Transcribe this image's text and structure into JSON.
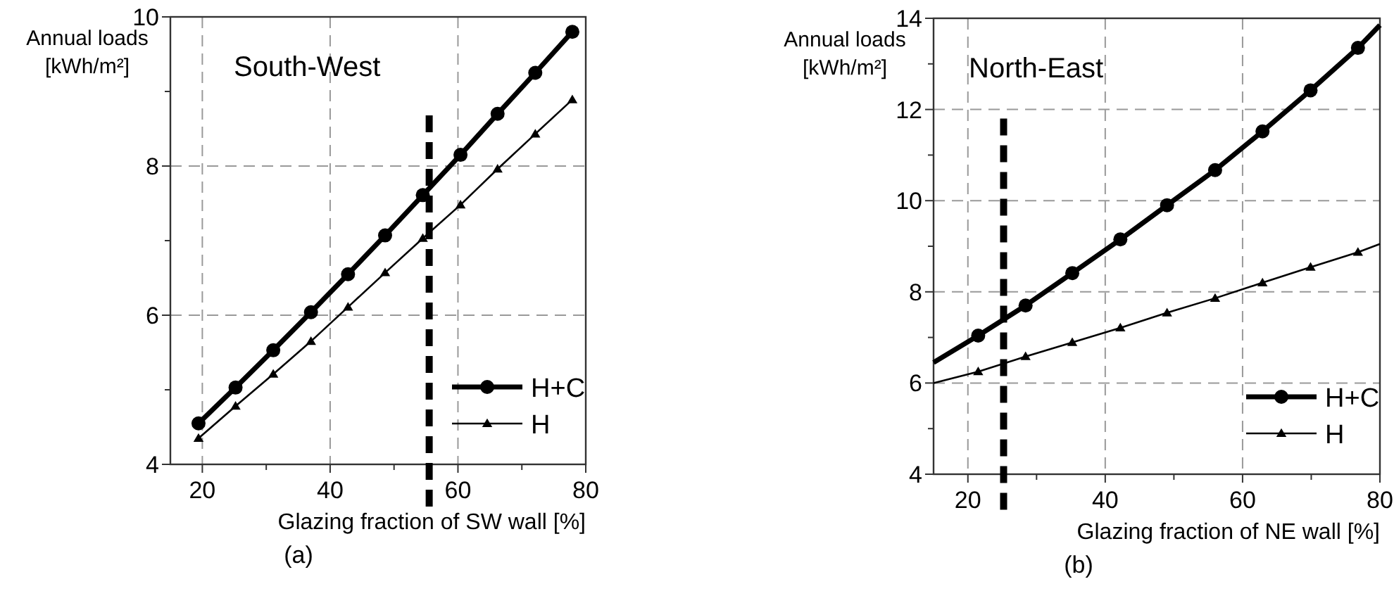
{
  "chart_data": [
    {
      "type": "line",
      "title": "South-West",
      "xlabel": "Glazing fraction of SW wall [%]",
      "ylabel": "Annual loads\n[kWh/m²]",
      "xlim": [
        15,
        80
      ],
      "ylim": [
        4,
        10
      ],
      "xticks": [
        20,
        {
          "value": 30,
          "label": null
        },
        40,
        {
          "value": 50,
          "label": null
        },
        60,
        {
          "value": 70,
          "label": null
        },
        80
      ],
      "yticks": [
        4,
        {
          "value": 5,
          "label": null
        },
        6,
        {
          "value": 7,
          "label": null
        },
        8,
        {
          "value": 9,
          "label": null
        },
        10
      ],
      "grid": true,
      "legend": "bottom right",
      "annotations": [
        "(a)"
      ],
      "ref_lines": [
        {
          "axis": "x",
          "value": 55.5,
          "color": "#000000",
          "line_style": "dashed"
        }
      ],
      "series": [
        {
          "name": "H+C",
          "color": "#000000",
          "marker": "circle",
          "x": [
            19.4,
            25.2,
            31.1,
            37,
            42.8,
            48.6,
            54.5,
            60.4,
            66.2,
            72.1,
            77.9
          ],
          "values": [
            4.55,
            5.03,
            5.53,
            6.04,
            6.55,
            7.07,
            7.61,
            8.15,
            8.7,
            9.25,
            9.8
          ]
        },
        {
          "name": "H",
          "color": "#000000",
          "marker": "triangle",
          "x": [
            19.4,
            25.2,
            31.1,
            37,
            42.8,
            48.6,
            54.5,
            60.4,
            66.2,
            72.1,
            77.9
          ],
          "values": [
            4.35,
            4.78,
            5.21,
            5.65,
            6.11,
            6.57,
            7.03,
            7.48,
            7.96,
            8.43,
            8.89
          ]
        }
      ]
    },
    {
      "type": "line",
      "title": "North-East",
      "xlabel": "Glazing fraction of NE wall [%]",
      "ylabel": "Annual loads\n[kWh/m²]",
      "xlim": [
        15,
        80
      ],
      "ylim": [
        4,
        14
      ],
      "xticks": [
        20,
        {
          "value": 30,
          "label": null
        },
        40,
        {
          "value": 50,
          "label": null
        },
        60,
        {
          "value": 70,
          "label": null
        },
        80
      ],
      "yticks": [
        4,
        {
          "value": 5,
          "label": null
        },
        6,
        {
          "value": 7,
          "label": null
        },
        8,
        {
          "value": 9,
          "label": null
        },
        10,
        {
          "value": 11,
          "label": null
        },
        12,
        {
          "value": 13,
          "label": null
        },
        14
      ],
      "grid": true,
      "legend": "bottom right",
      "annotations": [
        "(b)"
      ],
      "ref_lines": [
        {
          "axis": "x",
          "value": 25.2,
          "color": "#000000",
          "line_style": "dashed"
        }
      ],
      "series": [
        {
          "name": "H+C",
          "color": "#000000",
          "marker": "circle",
          "x": [
            15,
            21.5,
            28.4,
            35.2,
            42.2,
            49,
            56,
            62.9,
            69.9,
            76.8,
            80
          ],
          "values": [
            6.45,
            7.04,
            7.7,
            8.41,
            9.15,
            9.9,
            10.67,
            11.52,
            12.42,
            13.35,
            13.85
          ]
        },
        {
          "name": "H",
          "color": "#000000",
          "marker": "triangle",
          "x": [
            15,
            21.5,
            28.4,
            35.2,
            42.2,
            49,
            56,
            62.9,
            69.9,
            76.8,
            80
          ],
          "values": [
            6.0,
            6.25,
            6.58,
            6.89,
            7.21,
            7.54,
            7.86,
            8.2,
            8.54,
            8.87,
            9.05
          ]
        }
      ]
    }
  ]
}
